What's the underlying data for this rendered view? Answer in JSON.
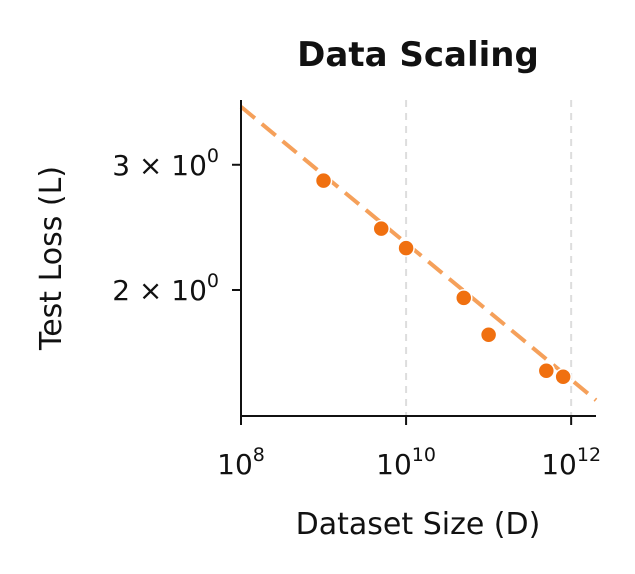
{
  "chart_data": {
    "type": "scatter",
    "title": "Data Scaling",
    "xlabel": "Dataset Size (D)",
    "ylabel": "Test Loss (L)",
    "xscale": "log",
    "yscale": "log",
    "xlim": [
      100000000.0,
      2000000000000.0
    ],
    "ylim": [
      1.33,
      3.7
    ],
    "xticks": [
      {
        "value": 100000000.0,
        "base": "10",
        "exp": "8"
      },
      {
        "value": 10000000000.0,
        "base": "10",
        "exp": "10"
      },
      {
        "value": 1000000000000.0,
        "base": "10",
        "exp": "12"
      }
    ],
    "yticks": [
      {
        "value": 3,
        "mant": "3",
        "base": "10",
        "exp": "0"
      },
      {
        "value": 2,
        "mant": "2",
        "base": "10",
        "exp": "0"
      }
    ],
    "grid": "x-major dashed",
    "points": {
      "x": [
        1000000000.0,
        5000000000.0,
        10000000000.0,
        50000000000.0,
        100000000000.0,
        500000000000.0,
        800000000000.0
      ],
      "y": [
        2.85,
        2.44,
        2.29,
        1.95,
        1.73,
        1.54,
        1.51
      ],
      "color": "#f07010"
    },
    "fit_line": {
      "x": [
        100000000.0,
        2000000000000.0
      ],
      "y": [
        3.62,
        1.4
      ],
      "color": "#f5a05a",
      "style": "dashed"
    }
  }
}
